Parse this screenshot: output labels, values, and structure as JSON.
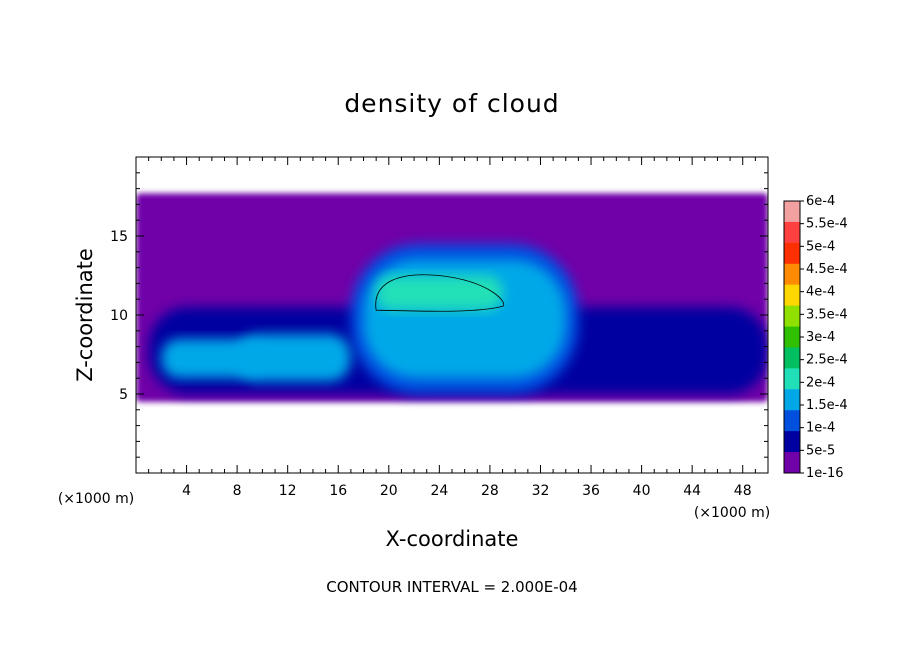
{
  "chart_data": {
    "type": "heatmap",
    "title": "density of cloud",
    "xlabel": "X-coordinate",
    "ylabel": "Z-coordinate",
    "x_unit": "(×1000 m)",
    "y_unit": "(×1000 m)",
    "xlim": [
      0,
      50
    ],
    "ylim": [
      0,
      20
    ],
    "x_ticks": [
      4,
      8,
      12,
      16,
      20,
      24,
      28,
      32,
      36,
      40,
      44,
      48
    ],
    "y_ticks": [
      5,
      10,
      15
    ],
    "footer": "CONTOUR INTERVAL = 2.000E-04",
    "colorbar": {
      "labels": [
        "6e-4",
        "5.5e-4",
        "5e-4",
        "4.5e-4",
        "4e-4",
        "3.5e-4",
        "3e-4",
        "2.5e-4",
        "2e-4",
        "1.5e-4",
        "1e-4",
        "5e-5",
        "1e-16"
      ],
      "colors": [
        "#f2a0a0",
        "#ff4040",
        "#ff3000",
        "#ff8c00",
        "#ffd700",
        "#90e000",
        "#30c000",
        "#00c060",
        "#20e0b8",
        "#00a8e8",
        "#0050e0",
        "#0000a0",
        "#7000a8"
      ]
    },
    "fields": [
      {
        "name": "cloud-base-layer",
        "level": "1e-16",
        "x_range": [
          0,
          50
        ],
        "z_range": [
          4.5,
          17.7
        ],
        "color": "#7000a8"
      },
      {
        "name": "low-layer-band",
        "level": "5e-5",
        "x_range": [
          1,
          50
        ],
        "z_range": [
          5,
          10.5
        ],
        "color": "#0000a0"
      },
      {
        "name": "central-updraft-cell",
        "level": "1e-4",
        "x_range": [
          17,
          35
        ],
        "z_range": [
          5,
          14.5
        ],
        "color": "#0050e0"
      },
      {
        "name": "central-core",
        "level": "1.5e-4",
        "x_range": [
          18,
          34
        ],
        "z_range": [
          6,
          13.5
        ],
        "color": "#00a8e8"
      },
      {
        "name": "core-maximum",
        "level": "2e-4",
        "x_range": [
          19,
          29
        ],
        "z_range": [
          10.3,
          12.5
        ],
        "color": "#20e0b8"
      },
      {
        "name": "lower-left-cell",
        "level": "1.5e-4",
        "x_range": [
          2,
          10
        ],
        "z_range": [
          6,
          8.5
        ],
        "color": "#00a8e8"
      },
      {
        "name": "lower-middle-cell",
        "level": "1.5e-4",
        "x_range": [
          8,
          17
        ],
        "z_range": [
          5.8,
          8.8
        ],
        "color": "#00a8e8"
      }
    ],
    "contour_lines": [
      {
        "level": "2e-4",
        "x_range": [
          19,
          29
        ],
        "z_range": [
          10.3,
          12.5
        ]
      }
    ]
  }
}
